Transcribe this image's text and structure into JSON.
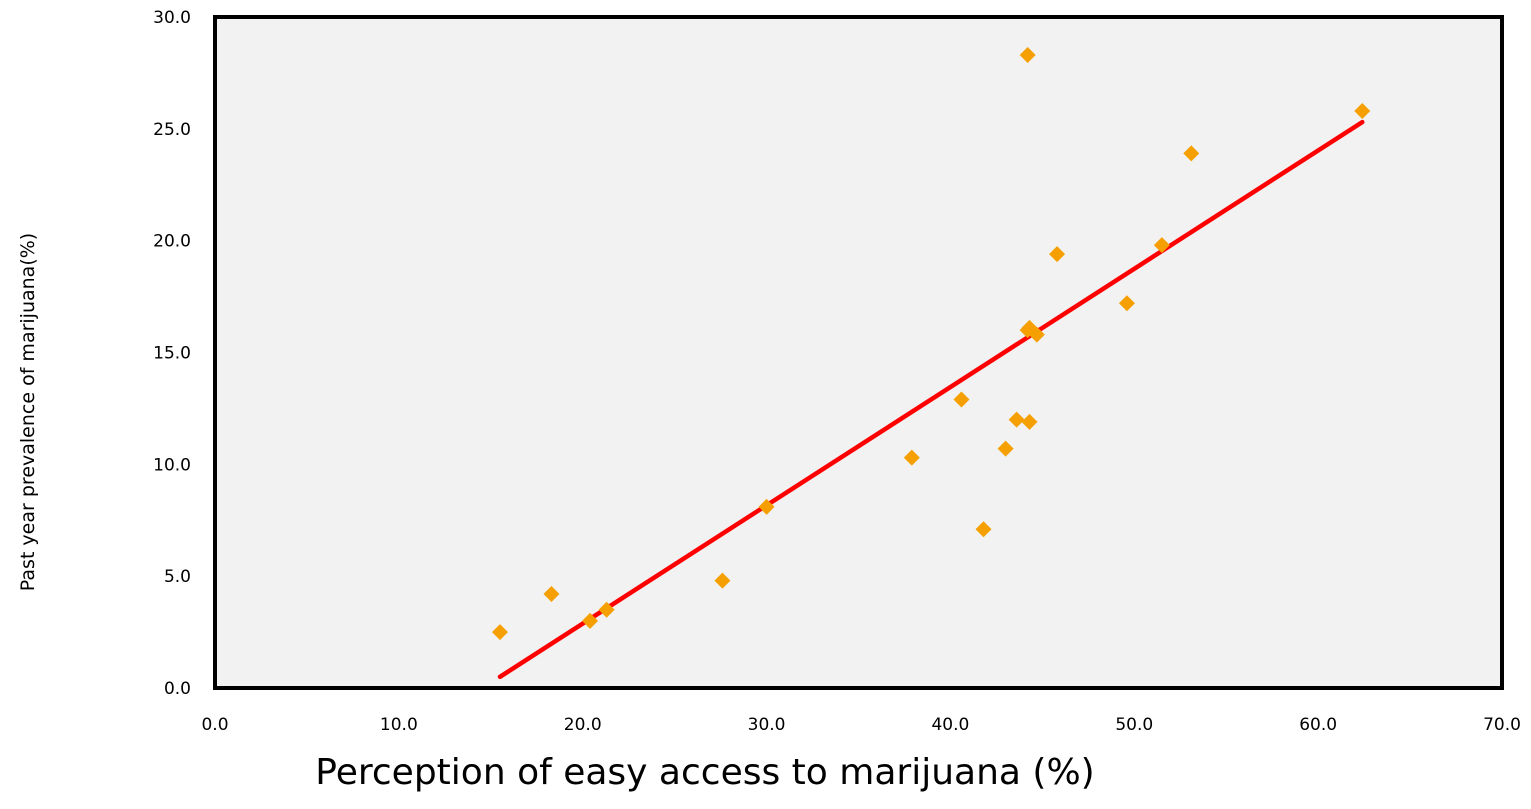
{
  "chart_data": {
    "type": "scatter",
    "title": "",
    "xlabel": "Perception of easy access to marijuana (%)",
    "ylabel": "Past year prevalence of marijuana(%)",
    "xlim": [
      0,
      70
    ],
    "ylim": [
      0,
      30
    ],
    "x_ticks": [
      "0.0",
      "10.0",
      "20.0",
      "30.0",
      "40.0",
      "50.0",
      "60.0",
      "70.0"
    ],
    "y_ticks": [
      "0.0",
      "5.0",
      "10.0",
      "15.0",
      "20.0",
      "25.0",
      "30.0"
    ],
    "grid": false,
    "legend": "none",
    "plot_background": "#f2f2f2",
    "series": [
      {
        "type": "scatter",
        "marker": "diamond",
        "color": "#f5a000",
        "points": [
          {
            "x": 15.5,
            "y": 2.5
          },
          {
            "x": 18.3,
            "y": 4.2
          },
          {
            "x": 20.4,
            "y": 3.0
          },
          {
            "x": 21.3,
            "y": 3.5
          },
          {
            "x": 27.6,
            "y": 4.8
          },
          {
            "x": 30.0,
            "y": 8.1
          },
          {
            "x": 37.9,
            "y": 10.3
          },
          {
            "x": 40.6,
            "y": 12.9
          },
          {
            "x": 41.8,
            "y": 7.1
          },
          {
            "x": 43.0,
            "y": 10.7
          },
          {
            "x": 43.6,
            "y": 12.0
          },
          {
            "x": 44.2,
            "y": 28.3
          },
          {
            "x": 44.3,
            "y": 11.9
          },
          {
            "x": 44.2,
            "y": 16.0
          },
          {
            "x": 44.3,
            "y": 16.1
          },
          {
            "x": 44.7,
            "y": 15.8
          },
          {
            "x": 45.8,
            "y": 19.4
          },
          {
            "x": 49.6,
            "y": 17.2
          },
          {
            "x": 51.5,
            "y": 19.8
          },
          {
            "x": 53.1,
            "y": 23.9
          },
          {
            "x": 62.4,
            "y": 25.8
          }
        ]
      },
      {
        "type": "line",
        "color": "#ff0000",
        "points": [
          {
            "x": 15.5,
            "y": 0.5
          },
          {
            "x": 62.4,
            "y": 25.3
          }
        ]
      }
    ]
  }
}
